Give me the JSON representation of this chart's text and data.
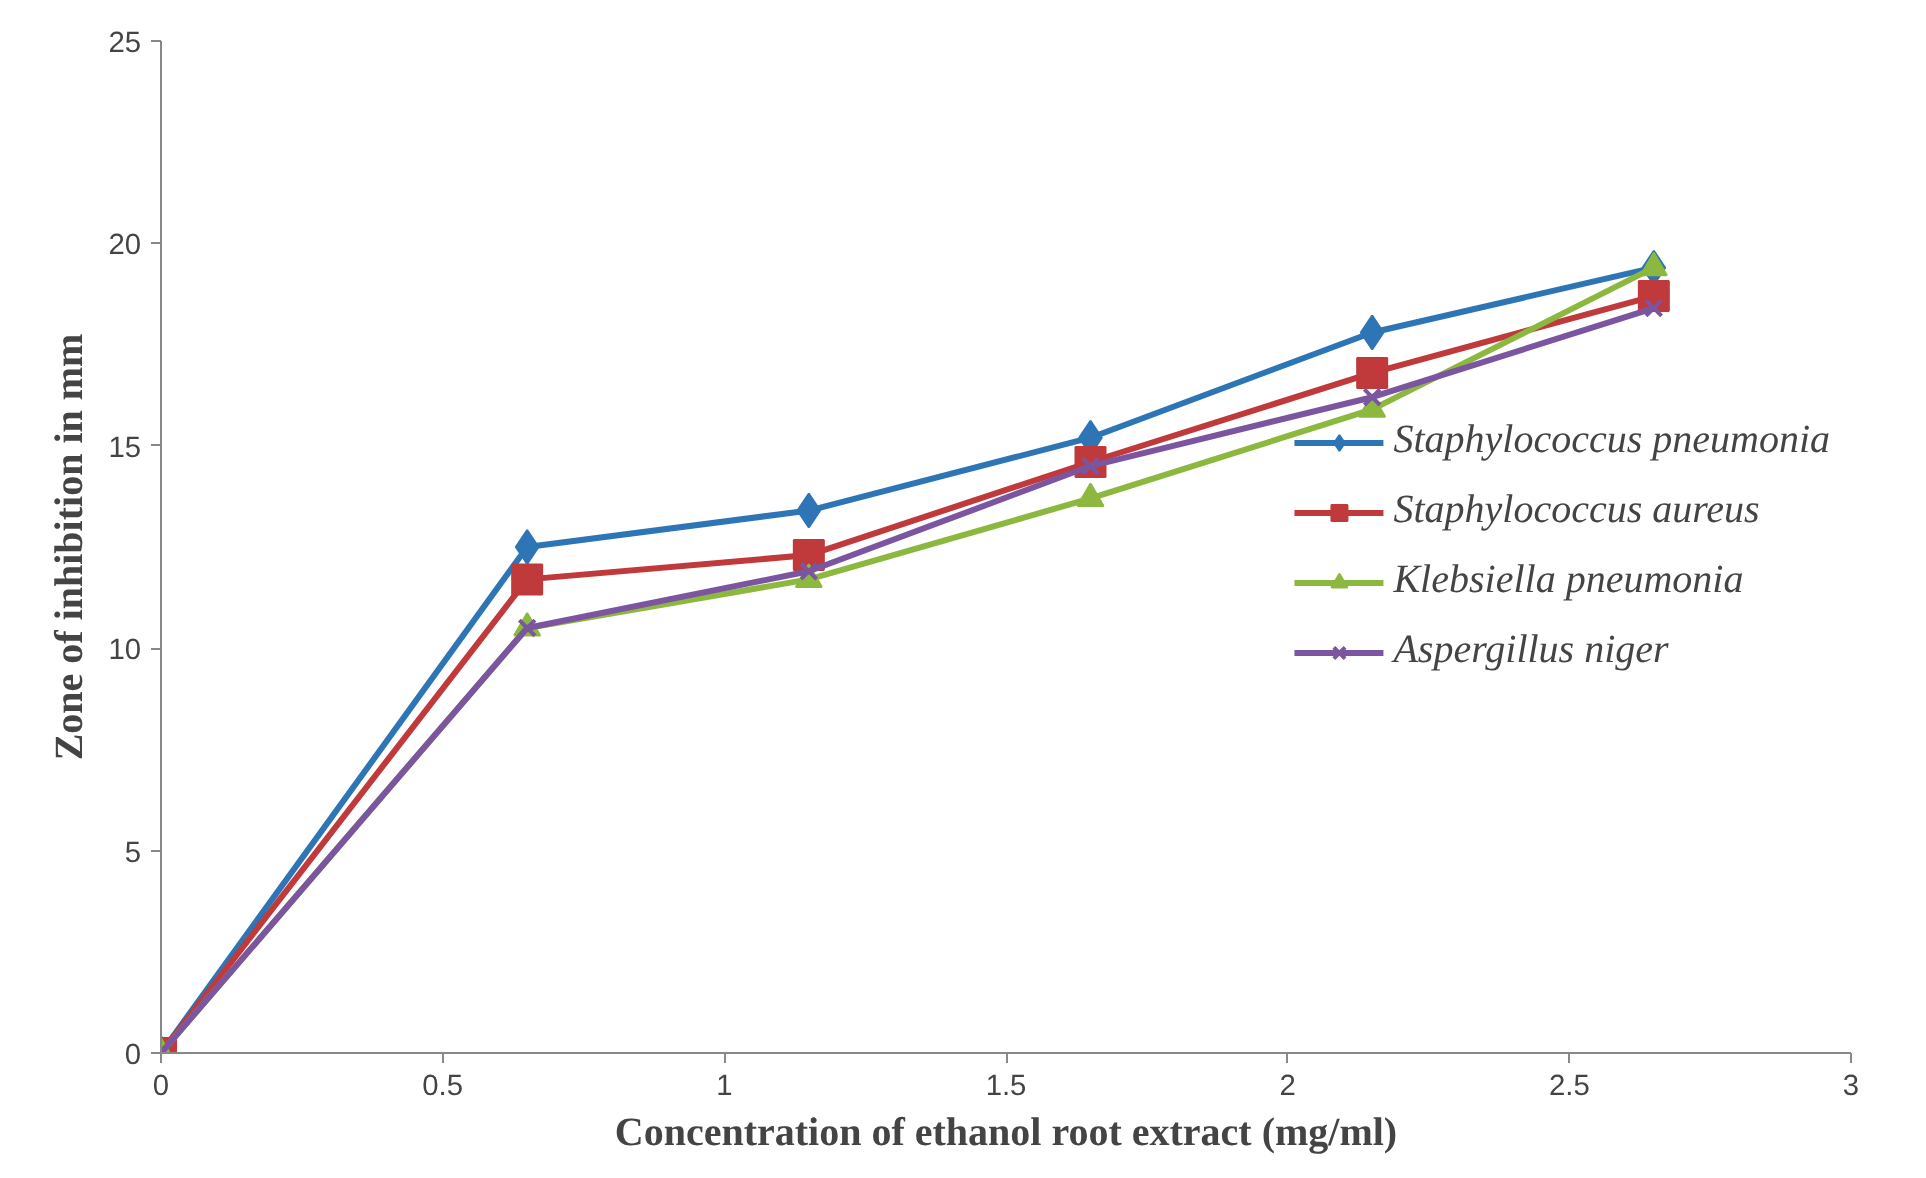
{
  "chart_data": {
    "type": "line",
    "xlabel": "Concentration of ethanol root extract (mg/ml)",
    "ylabel": "Zone of inhibition in mm",
    "x": [
      0,
      0.65,
      1.15,
      1.65,
      2.15,
      2.65
    ],
    "xlim": [
      0,
      3
    ],
    "xticks": [
      0,
      0.5,
      1,
      1.5,
      2,
      2.5,
      3
    ],
    "ylim": [
      0,
      25
    ],
    "yticks": [
      0,
      5,
      10,
      15,
      20,
      25
    ],
    "grid": false,
    "legend": "right",
    "series": [
      {
        "name": "Staphylococcus pneumonia",
        "color": "#2e75b6",
        "marker": "diamond",
        "values": [
          0,
          12.5,
          13.4,
          15.2,
          17.8,
          19.4
        ]
      },
      {
        "name": "Staphylococcus aureus",
        "color": "#c0393b",
        "marker": "square",
        "values": [
          0,
          11.7,
          12.3,
          14.6,
          16.8,
          18.7
        ]
      },
      {
        "name": "Klebsiella pneumonia",
        "color": "#8db83f",
        "marker": "triangle",
        "values": [
          0,
          10.5,
          11.7,
          13.7,
          15.9,
          19.4
        ]
      },
      {
        "name": "Aspergillus niger",
        "color": "#7b55a0",
        "marker": "cross",
        "values": [
          0,
          10.5,
          11.9,
          14.5,
          16.2,
          18.4
        ]
      }
    ]
  }
}
